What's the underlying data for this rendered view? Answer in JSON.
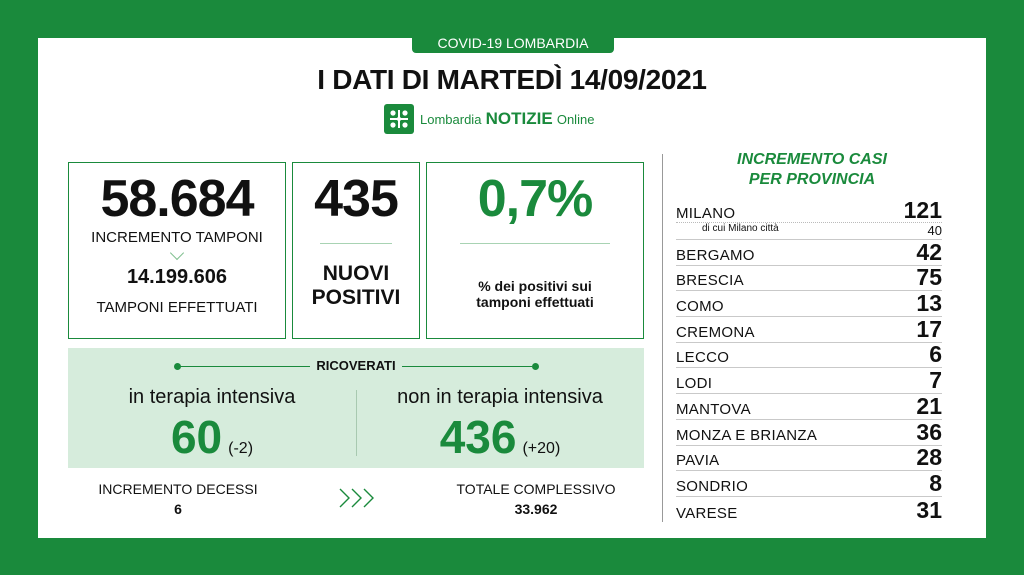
{
  "header": {
    "tag": "COVID-19 LOMBARDIA",
    "title": "I DATI DI MARTEDÌ 14/09/2021",
    "brand": {
      "prefix": "Lombardia",
      "main": "NOTIZIE",
      "suffix": "Online"
    }
  },
  "tamponi": {
    "value": "58.684",
    "label": "INCREMENTO TAMPONI",
    "total": "14.199.606",
    "total_label": "TAMPONI EFFETTUATI"
  },
  "positivi": {
    "value": "435",
    "label_line1": "NUOVI",
    "label_line2": "POSITIVI"
  },
  "percentuale": {
    "value": "0,7%",
    "label_line1": "% dei positivi sui",
    "label_line2": "tamponi effettuati"
  },
  "ricoverati": {
    "title": "RICOVERATI",
    "intensiva": {
      "label": "in terapia intensiva",
      "value": "60",
      "delta": "(-2)"
    },
    "non_intensiva": {
      "label": "non in terapia intensiva",
      "value": "436",
      "delta": "(+20)"
    }
  },
  "decessi": {
    "label": "INCREMENTO DECESSI",
    "value": "6"
  },
  "totale": {
    "label": "TOTALE COMPLESSIVO",
    "value": "33.962"
  },
  "province": {
    "title_line1": "INCREMENTO CASI",
    "title_line2": "PER PROVINCIA",
    "milano": {
      "name": "MILANO",
      "value": "121",
      "sub_label": "di cui Milano città",
      "sub_value": "40"
    },
    "items": [
      {
        "name": "BERGAMO",
        "value": "42"
      },
      {
        "name": "BRESCIA",
        "value": "75"
      },
      {
        "name": "COMO",
        "value": "13"
      },
      {
        "name": "CREMONA",
        "value": "17"
      },
      {
        "name": "LECCO",
        "value": "6"
      },
      {
        "name": "LODI",
        "value": "7"
      },
      {
        "name": "MANTOVA",
        "value": "21"
      },
      {
        "name": "MONZA E BRIANZA",
        "value": "36"
      },
      {
        "name": "PAVIA",
        "value": "28"
      },
      {
        "name": "SONDRIO",
        "value": "8"
      },
      {
        "name": "VARESE",
        "value": "31"
      }
    ]
  },
  "icons": {
    "brand_logo": "lombardia-rose-icon",
    "arrows": "triple-chevron-right-icon"
  },
  "colors": {
    "brand_green": "#1a8a3c",
    "panel_green": "#d6ecdc"
  }
}
